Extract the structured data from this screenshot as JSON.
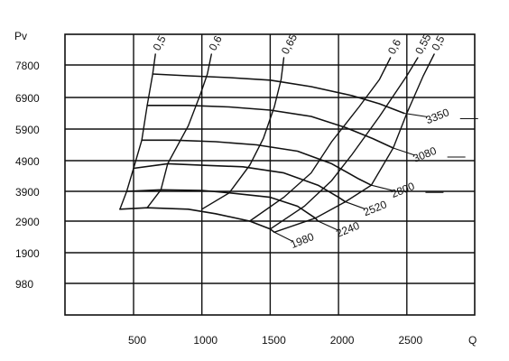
{
  "chart_data": {
    "type": "line",
    "title": "",
    "xlabel": "Q",
    "ylabel": "Pv",
    "xlim": [
      0,
      2800
    ],
    "grid": true,
    "x_ticks": [
      "500",
      "1000",
      "1500",
      "2000",
      "2500"
    ],
    "x_tick_values": [
      500,
      1000,
      1500,
      2000,
      2500
    ],
    "y_ticks": [
      "7800",
      "6900",
      "5900",
      "4900",
      "3900",
      "2900",
      "1900",
      "980"
    ],
    "y_tick_values": [
      7800,
      6900,
      5900,
      4900,
      3900,
      2900,
      1900,
      980
    ],
    "speed_curves": [
      {
        "name": "3350",
        "points": [
          [
            640,
            7550
          ],
          [
            900,
            7500
          ],
          [
            1200,
            7450
          ],
          [
            1500,
            7380
          ],
          [
            1800,
            7200
          ],
          [
            2100,
            6950
          ],
          [
            2300,
            6700
          ],
          [
            2480,
            6400
          ]
        ]
      },
      {
        "name": "3080",
        "points": [
          [
            600,
            6650
          ],
          [
            900,
            6650
          ],
          [
            1200,
            6600
          ],
          [
            1500,
            6500
          ],
          [
            1800,
            6300
          ],
          [
            2050,
            5950
          ],
          [
            2250,
            5600
          ],
          [
            2400,
            5300
          ]
        ]
      },
      {
        "name": "2800",
        "points": [
          [
            560,
            5550
          ],
          [
            800,
            5550
          ],
          [
            1100,
            5500
          ],
          [
            1400,
            5400
          ],
          [
            1700,
            5200
          ],
          [
            1950,
            4800
          ],
          [
            2150,
            4300
          ],
          [
            2240,
            4100
          ]
        ]
      },
      {
        "name": "2520",
        "points": [
          [
            500,
            4650
          ],
          [
            750,
            4800
          ],
          [
            1000,
            4750
          ],
          [
            1300,
            4700
          ],
          [
            1600,
            4500
          ],
          [
            1850,
            4100
          ],
          [
            2000,
            3700
          ],
          [
            2050,
            3550
          ]
        ]
      },
      {
        "name": "2240",
        "points": [
          [
            450,
            3900
          ],
          [
            700,
            3950
          ],
          [
            1000,
            3930
          ],
          [
            1200,
            3850
          ],
          [
            1500,
            3700
          ],
          [
            1700,
            3400
          ],
          [
            1830,
            3000
          ],
          [
            1850,
            2900
          ]
        ]
      },
      {
        "name": "1980",
        "points": [
          [
            400,
            3300
          ],
          [
            600,
            3350
          ],
          [
            900,
            3300
          ],
          [
            1100,
            3150
          ],
          [
            1350,
            2900
          ],
          [
            1500,
            2650
          ],
          [
            1530,
            2550
          ]
        ]
      }
    ],
    "efficiency_curves": [
      {
        "name": "0,5",
        "points": [
          [
            400,
            3300
          ],
          [
            450,
            3900
          ],
          [
            500,
            4650
          ],
          [
            560,
            5550
          ],
          [
            600,
            6650
          ],
          [
            640,
            7550
          ],
          [
            660,
            8100
          ]
        ]
      },
      {
        "name": "0,6",
        "points": [
          [
            600,
            3350
          ],
          [
            700,
            3950
          ],
          [
            750,
            4800
          ],
          [
            900,
            6000
          ],
          [
            990,
            7000
          ],
          [
            1040,
            7550
          ],
          [
            1070,
            8100
          ]
        ]
      },
      {
        "name": "0,65",
        "points": [
          [
            1000,
            3300
          ],
          [
            1200,
            3850
          ],
          [
            1350,
            4750
          ],
          [
            1450,
            5600
          ],
          [
            1530,
            6600
          ],
          [
            1580,
            7400
          ],
          [
            1600,
            8000
          ]
        ]
      },
      {
        "name": "0,6",
        "points": [
          [
            1350,
            2900
          ],
          [
            1600,
            3700
          ],
          [
            1800,
            4500
          ],
          [
            1950,
            5500
          ],
          [
            2150,
            6600
          ],
          [
            2300,
            7400
          ],
          [
            2380,
            8000
          ]
        ]
      },
      {
        "name": "0,55",
        "points": [
          [
            1500,
            2650
          ],
          [
            1750,
            3400
          ],
          [
            1950,
            4250
          ],
          [
            2100,
            5100
          ],
          [
            2300,
            6300
          ],
          [
            2500,
            7500
          ],
          [
            2580,
            8000
          ]
        ]
      },
      {
        "name": "0,5",
        "points": [
          [
            1530,
            2550
          ],
          [
            1830,
            3000
          ],
          [
            2050,
            3550
          ],
          [
            2240,
            4100
          ],
          [
            2400,
            5300
          ],
          [
            2500,
            6400
          ],
          [
            2620,
            7500
          ],
          [
            2700,
            8100
          ]
        ]
      }
    ]
  }
}
